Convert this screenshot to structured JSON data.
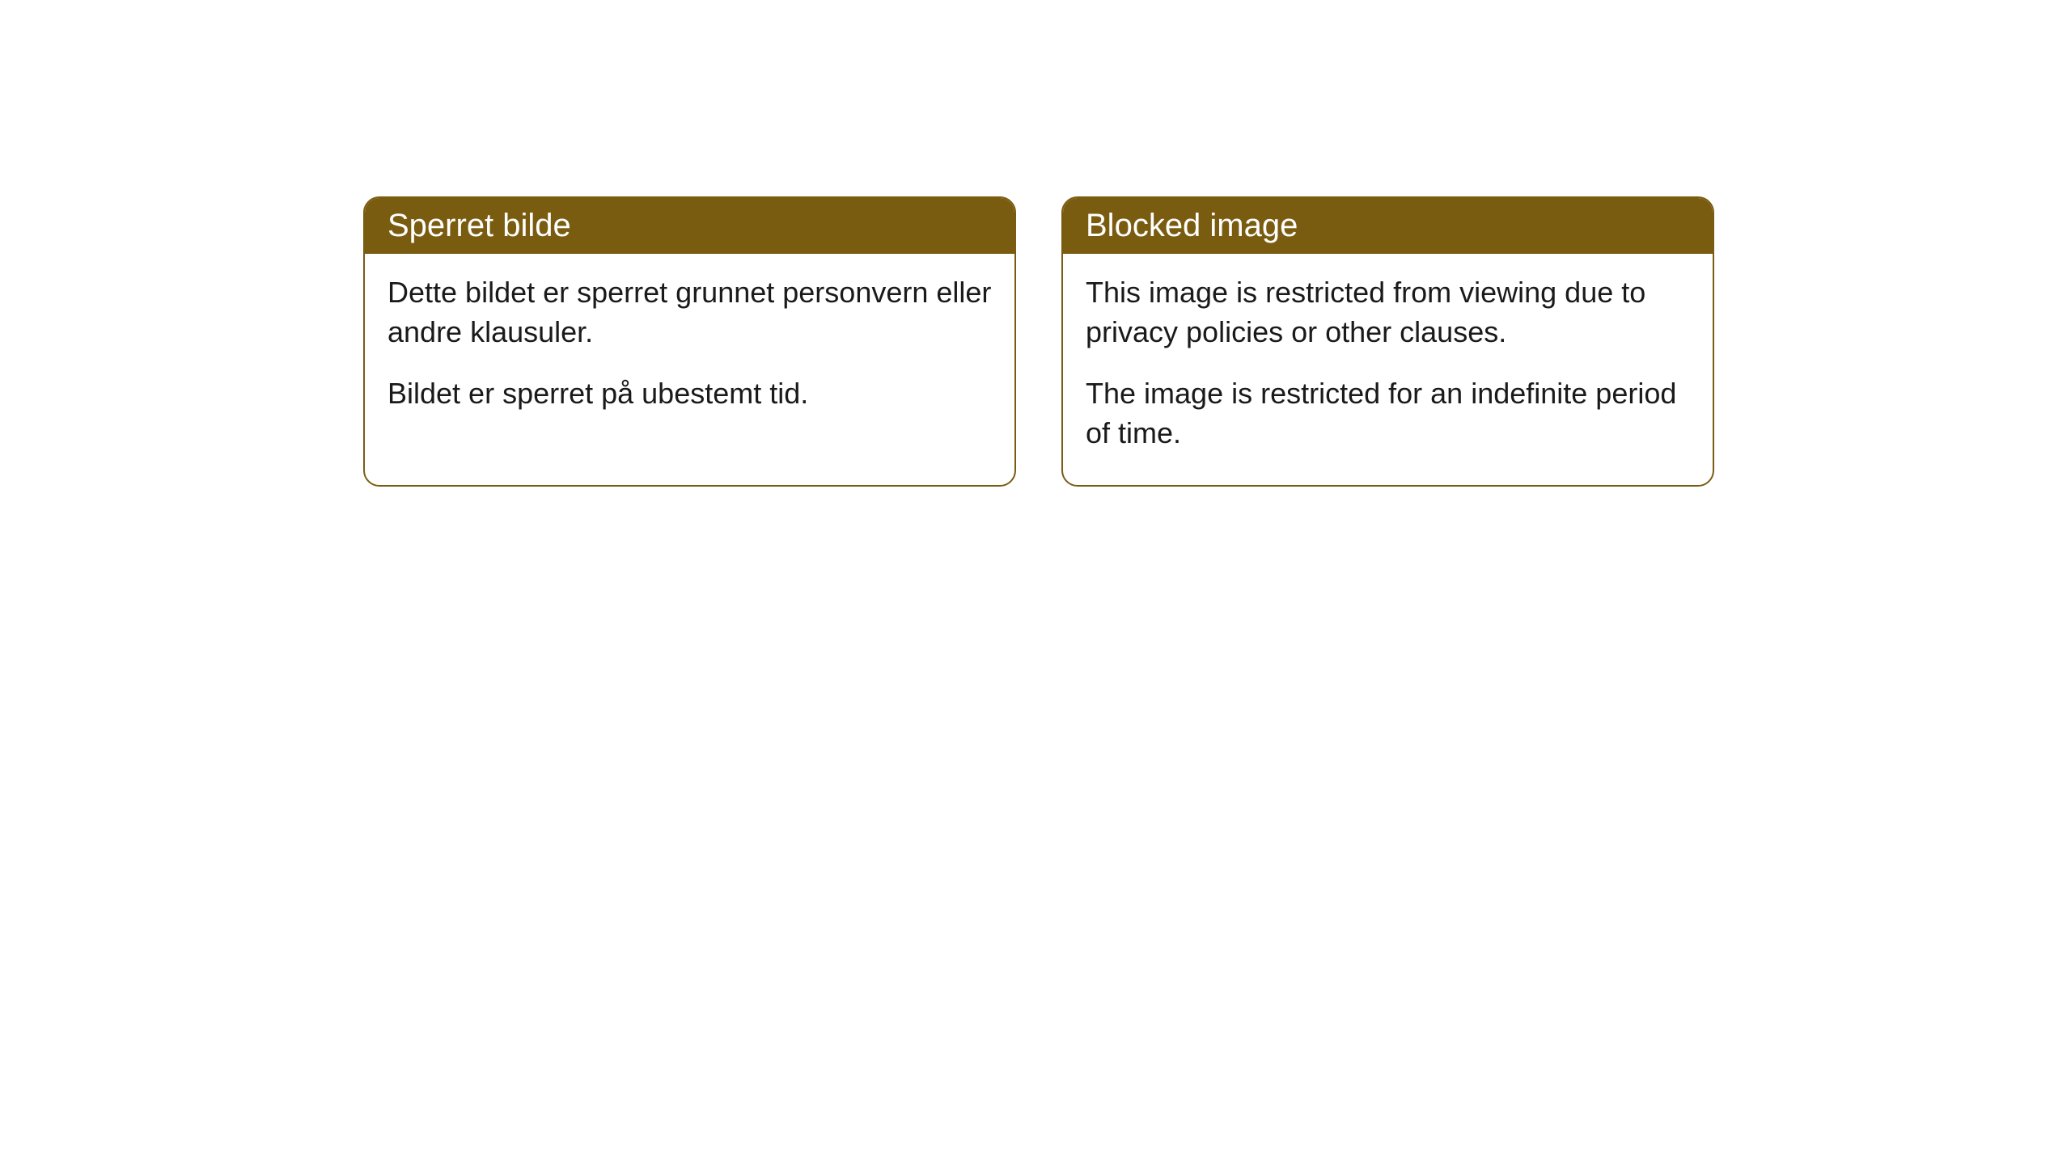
{
  "cards": [
    {
      "title": "Sperret bilde",
      "paragraph1": "Dette bildet er sperret grunnet personvern eller andre klausuler.",
      "paragraph2": "Bildet er sperret på ubestemt tid."
    },
    {
      "title": "Blocked image",
      "paragraph1": "This image is restricted from viewing due to privacy policies or other clauses.",
      "paragraph2": "The image is restricted for an indefinite period of time."
    }
  ],
  "colors": {
    "header_bg": "#7a5c11",
    "header_text": "#ffffff",
    "border": "#7a5c11",
    "body_bg": "#ffffff",
    "body_text": "#1a1a1a"
  }
}
